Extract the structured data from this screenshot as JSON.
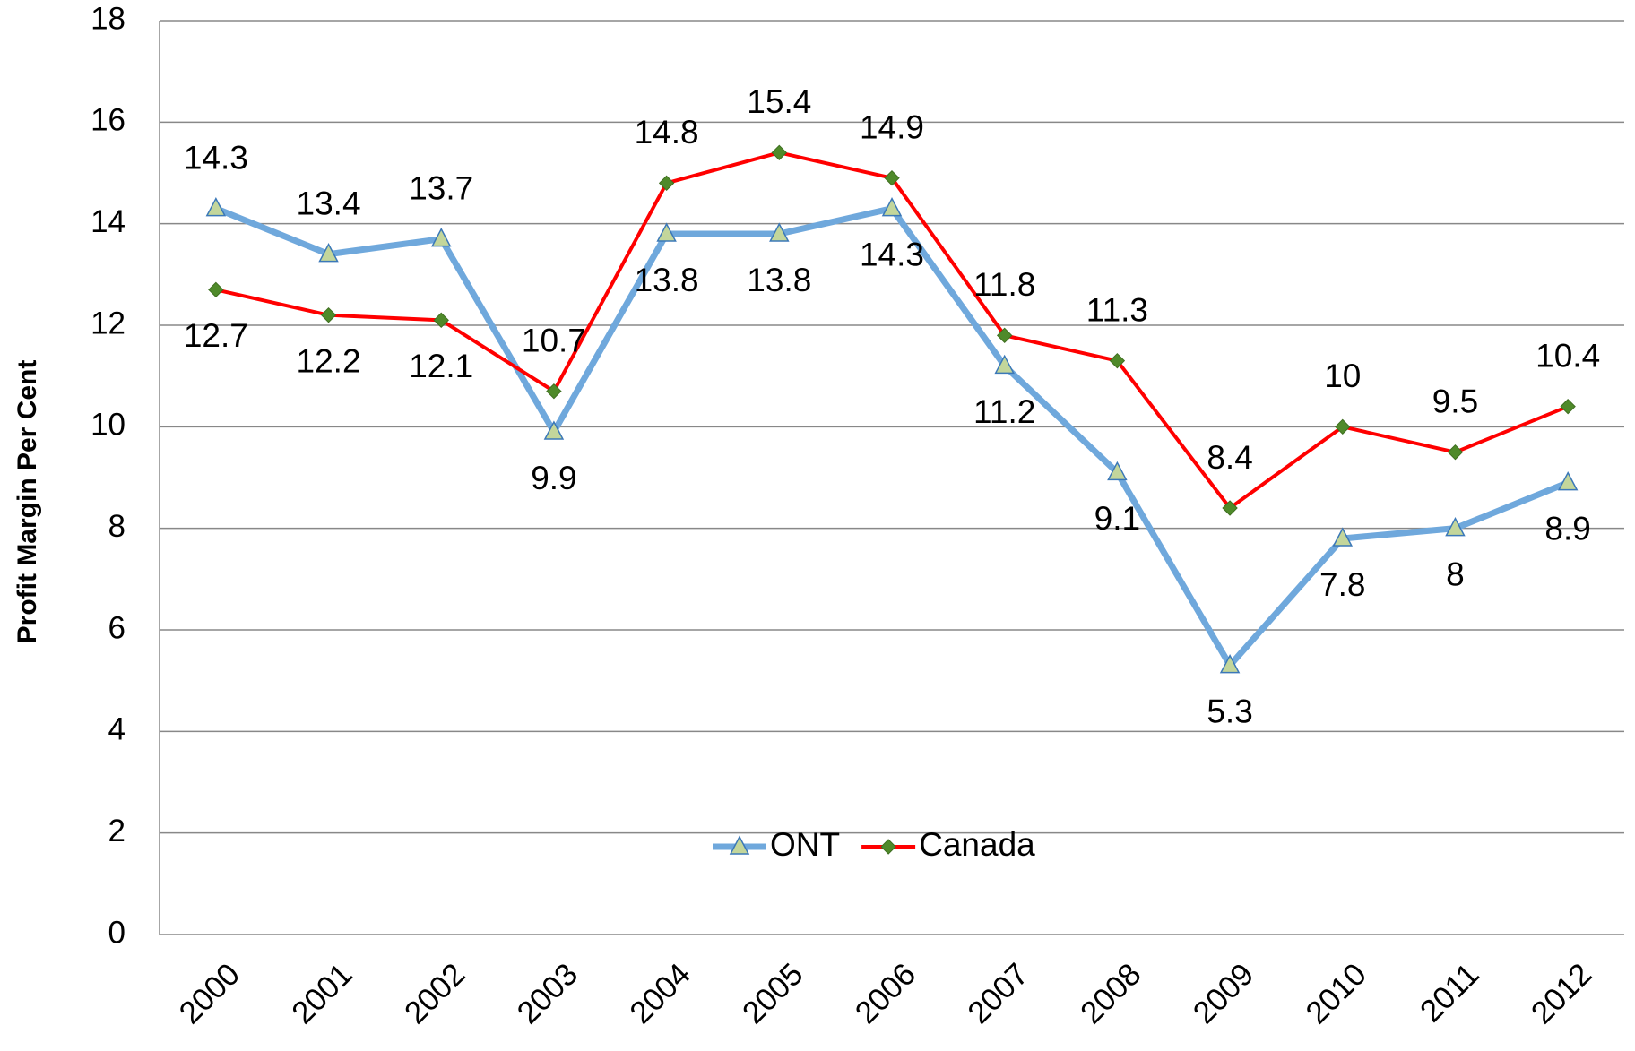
{
  "chart_data": {
    "type": "line",
    "y_label": "Profit Margin Per Cent",
    "categories": [
      "2000",
      "2001",
      "2002",
      "2003",
      "2004",
      "2005",
      "2006",
      "2007",
      "2008",
      "2009",
      "2010",
      "2011",
      "2012"
    ],
    "series": [
      {
        "name": "ONT",
        "color": "#6fa8dc",
        "marker": "triangle",
        "values": [
          14.3,
          13.4,
          13.7,
          9.9,
          13.8,
          13.8,
          14.3,
          11.2,
          9.1,
          5.3,
          7.8,
          8,
          8.9
        ]
      },
      {
        "name": "Canada",
        "color": "#ff0000",
        "marker": "diamond",
        "values": [
          12.7,
          12.2,
          12.1,
          10.7,
          14.8,
          15.4,
          14.9,
          11.8,
          11.3,
          8.4,
          10,
          9.5,
          10.4
        ]
      }
    ],
    "ylim": [
      0,
      18
    ],
    "yticks": [
      0,
      2,
      4,
      6,
      8,
      10,
      12,
      14,
      16,
      18
    ],
    "grid": true,
    "legend": "bottom"
  }
}
